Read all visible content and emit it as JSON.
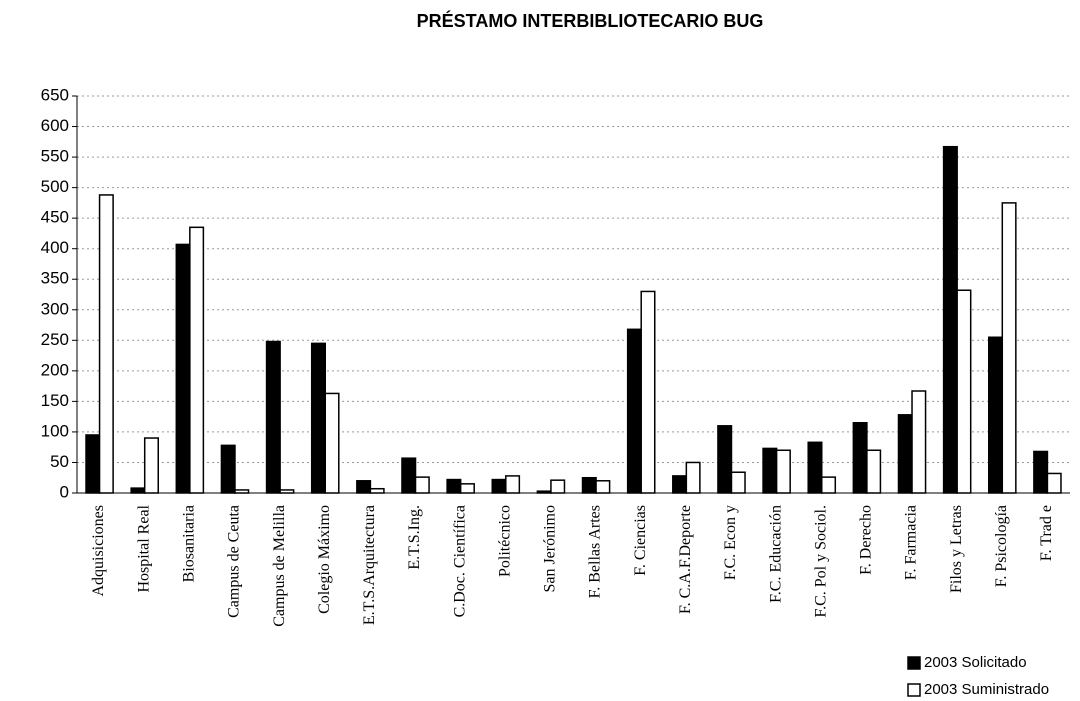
{
  "chart_data": {
    "type": "bar",
    "title": "PRÉSTAMO INTERBIBLIOTECARIO BUG",
    "categories": [
      "Adquisiciones",
      "Hospital Real",
      "Biosanitaria",
      "Campus de Ceuta",
      "Campus de Melilla",
      "Colegio Máximo",
      "E.T.S.Arquitectura",
      "E.T.S.Ing.",
      "C.Doc. Científica",
      "Politécnico",
      "San Jerónimo",
      "F. Bellas Artes",
      "F. Ciencias",
      "F. C.A.F.Deporte",
      "F.C. Econ y",
      "F.C. Educación",
      "F.C. Pol y Sociol.",
      "F. Derecho",
      "F. Farmacia",
      "Filos y Letras",
      "F. Psicología",
      "F. Trad e"
    ],
    "series": [
      {
        "name": "2003 Solicitado",
        "color": "#000000",
        "values": [
          95,
          8,
          407,
          78,
          248,
          245,
          20,
          57,
          22,
          22,
          3,
          25,
          268,
          28,
          110,
          73,
          83,
          115,
          128,
          567,
          255,
          68
        ]
      },
      {
        "name": "2003 Suministrado",
        "color": "#ffffff",
        "values": [
          488,
          90,
          435,
          5,
          5,
          163,
          7,
          26,
          15,
          28,
          21,
          20,
          330,
          50,
          34,
          70,
          26,
          70,
          167,
          332,
          475,
          32
        ]
      }
    ],
    "ylim": [
      0,
      650
    ],
    "yticks": [
      0,
      50,
      100,
      150,
      200,
      250,
      300,
      350,
      400,
      450,
      500,
      550,
      600,
      650
    ],
    "grid": true,
    "legend": "bottom-right"
  }
}
